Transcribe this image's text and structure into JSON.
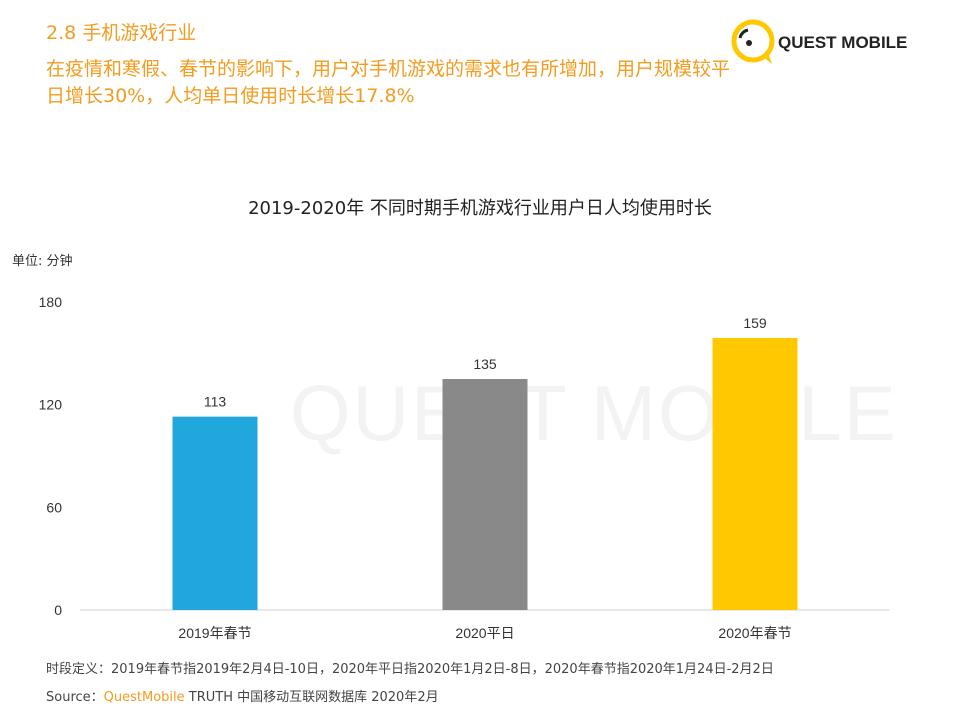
{
  "header": {
    "section": "2.8 手机游戏行业",
    "subtitle": "在疫情和寒假、春节的影响下，用户对手机游戏的需求也有所增加，用户规模较平日增长30%，人均单日使用时长增长17.8%",
    "logo": "QUEST MOBILE"
  },
  "watermark": "QUEST MOBILE",
  "chart_data": {
    "type": "bar",
    "title": "2019-2020年 不同时期手机游戏行业用户日人均使用时长",
    "ylabel": "单位: 分钟",
    "categories": [
      "2019年春节",
      "2020平日",
      "2020年春节"
    ],
    "values": [
      113,
      135,
      159
    ],
    "colors": [
      "#21A7DC",
      "#898989",
      "#FFC800"
    ],
    "ylim": [
      0,
      180
    ],
    "yticks": [
      0,
      60,
      120,
      180
    ],
    "grid": false
  },
  "footer": {
    "definition": "时段定义：2019年春节指2019年2月4日-10日，2020年平日指2020年1月2日-8日，2020年春节指2020年1月24日-2月2日",
    "source_label": "Source：",
    "source_brand": "QuestMobile",
    "source_rest": " TRUTH 中国移动互联网数据库 2020年2月"
  }
}
